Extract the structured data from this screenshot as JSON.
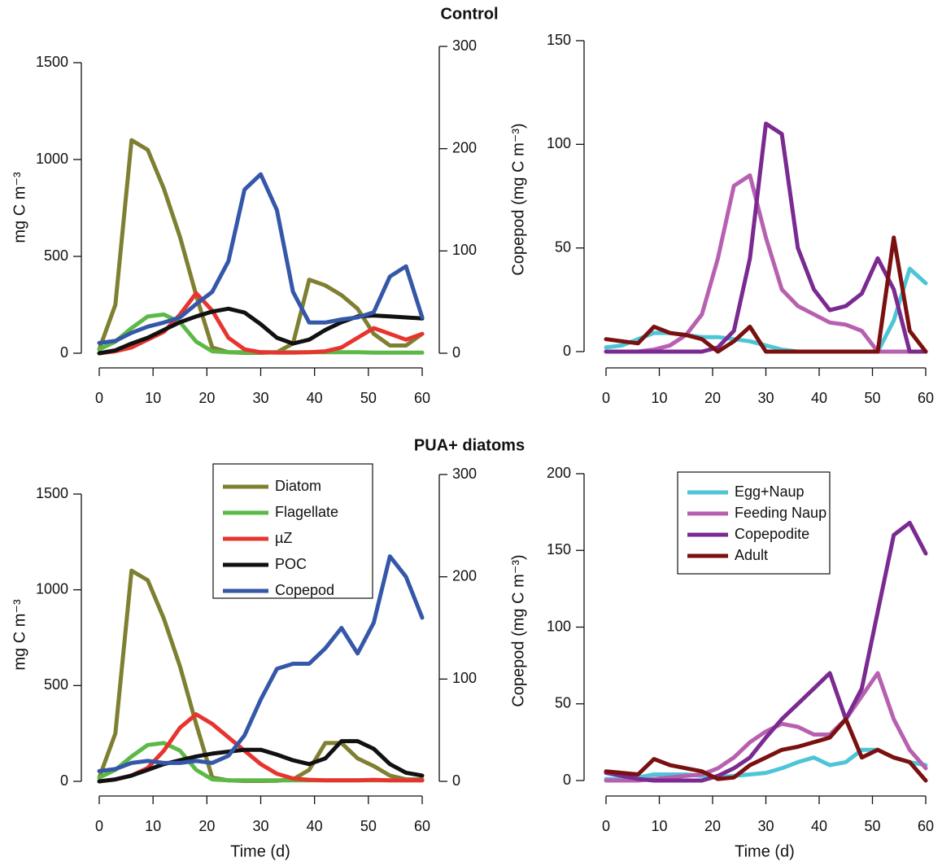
{
  "chart_data": [
    {
      "type": "line",
      "title": "Control",
      "x": [
        0,
        3,
        6,
        9,
        12,
        15,
        18,
        21,
        24,
        27,
        30,
        33,
        36,
        39,
        42,
        45,
        48,
        51,
        54,
        57,
        60
      ],
      "xlim": [
        0,
        60
      ],
      "xticks": [
        0,
        10,
        20,
        30,
        40,
        50,
        60
      ],
      "y_label": "mg C m⁻³",
      "ylim": [
        0,
        1500
      ],
      "yticks": [
        0,
        500,
        1000,
        1500
      ],
      "y2lim": [
        0,
        300
      ],
      "y2ticks": [
        0,
        100,
        200,
        300
      ],
      "series": [
        {
          "color": "#7f7f32",
          "values": [
            20,
            250,
            1100,
            1050,
            850,
            600,
            300,
            30,
            5,
            2,
            2,
            5,
            50,
            380,
            350,
            300,
            230,
            100,
            40,
            40,
            100
          ]
        },
        {
          "color": "#5cb946",
          "values": [
            20,
            60,
            130,
            190,
            200,
            160,
            60,
            10,
            5,
            5,
            5,
            5,
            5,
            5,
            5,
            5,
            5,
            3,
            3,
            3,
            3
          ]
        },
        {
          "color": "#e8342e",
          "values": [
            0,
            10,
            30,
            70,
            110,
            200,
            310,
            220,
            80,
            20,
            5,
            3,
            3,
            5,
            10,
            30,
            80,
            130,
            100,
            70,
            100
          ]
        },
        {
          "color": "#111111",
          "values": [
            0,
            15,
            50,
            80,
            120,
            160,
            190,
            215,
            230,
            210,
            150,
            80,
            50,
            70,
            120,
            160,
            190,
            195,
            190,
            185,
            180
          ]
        },
        {
          "color": "#3557a8",
          "axis": "y2",
          "values": [
            10,
            12,
            20,
            26,
            30,
            35,
            48,
            60,
            90,
            160,
            175,
            140,
            60,
            30,
            30,
            33,
            35,
            40,
            75,
            85,
            35
          ]
        }
      ]
    },
    {
      "type": "line",
      "x": [
        0,
        3,
        6,
        9,
        12,
        15,
        18,
        21,
        24,
        27,
        30,
        33,
        36,
        39,
        42,
        45,
        48,
        51,
        54,
        57,
        60
      ],
      "xlim": [
        0,
        60
      ],
      "xticks": [
        0,
        10,
        20,
        30,
        40,
        50,
        60
      ],
      "y_label": "Copepod (mg C m⁻³)",
      "ylim": [
        0,
        150
      ],
      "yticks": [
        0,
        50,
        100,
        150
      ],
      "series": [
        {
          "color": "#4ec5d6",
          "values": [
            2,
            3,
            6,
            9,
            9,
            8,
            7,
            7,
            6,
            5,
            3,
            1,
            0,
            0,
            0,
            0,
            0,
            0,
            15,
            40,
            33
          ]
        },
        {
          "color": "#b860b0",
          "values": [
            0,
            0,
            0,
            1,
            3,
            8,
            18,
            45,
            80,
            85,
            55,
            30,
            22,
            18,
            14,
            13,
            10,
            0,
            0,
            0,
            0
          ]
        },
        {
          "color": "#7a2a90",
          "values": [
            0,
            0,
            0,
            0,
            0,
            0,
            0,
            2,
            10,
            45,
            110,
            105,
            50,
            30,
            20,
            22,
            28,
            45,
            30,
            0,
            0
          ]
        },
        {
          "color": "#7a1010",
          "values": [
            6,
            5,
            4,
            12,
            9,
            8,
            6,
            0,
            5,
            12,
            0,
            0,
            0,
            0,
            0,
            0,
            0,
            0,
            55,
            10,
            0
          ]
        }
      ]
    },
    {
      "type": "line",
      "title": "PUA+ diatoms",
      "x": [
        0,
        3,
        6,
        9,
        12,
        15,
        18,
        21,
        24,
        27,
        30,
        33,
        36,
        39,
        42,
        45,
        48,
        51,
        54,
        57,
        60
      ],
      "xlim": [
        0,
        60
      ],
      "xticks": [
        0,
        10,
        20,
        30,
        40,
        50,
        60
      ],
      "x_label": "Time (d)",
      "y_label": "mg C m⁻³",
      "ylim": [
        0,
        1500
      ],
      "yticks": [
        0,
        500,
        1000,
        1500
      ],
      "y2lim": [
        0,
        300
      ],
      "y2ticks": [
        0,
        100,
        200,
        300
      ],
      "legend": true,
      "series": [
        {
          "name": "Diatom",
          "color": "#7f7f32",
          "values": [
            20,
            250,
            1100,
            1050,
            850,
            600,
            300,
            20,
            5,
            2,
            2,
            3,
            10,
            60,
            200,
            200,
            120,
            80,
            30,
            10,
            10
          ]
        },
        {
          "name": "Flagellate",
          "color": "#5cb946",
          "values": [
            20,
            60,
            130,
            190,
            200,
            160,
            60,
            10,
            5,
            5,
            5,
            5,
            5,
            5,
            5,
            5,
            5,
            5,
            5,
            5,
            5
          ]
        },
        {
          "name": "µZ",
          "color": "#e8342e",
          "values": [
            0,
            10,
            30,
            70,
            160,
            280,
            350,
            300,
            230,
            160,
            90,
            40,
            15,
            8,
            5,
            5,
            5,
            8,
            5,
            5,
            5
          ]
        },
        {
          "name": "POC",
          "color": "#111111",
          "values": [
            0,
            10,
            30,
            60,
            90,
            110,
            130,
            145,
            155,
            165,
            165,
            140,
            110,
            90,
            120,
            210,
            210,
            170,
            90,
            45,
            30
          ]
        },
        {
          "name": "Copepod",
          "color": "#3557a8",
          "axis": "y2",
          "values": [
            10,
            12,
            18,
            20,
            18,
            18,
            20,
            18,
            25,
            45,
            80,
            110,
            115,
            115,
            130,
            150,
            125,
            155,
            220,
            200,
            160
          ]
        }
      ]
    },
    {
      "type": "line",
      "x": [
        0,
        3,
        6,
        9,
        12,
        15,
        18,
        21,
        24,
        27,
        30,
        33,
        36,
        39,
        42,
        45,
        48,
        51,
        54,
        57,
        60
      ],
      "xlim": [
        0,
        60
      ],
      "xticks": [
        0,
        10,
        20,
        30,
        40,
        50,
        60
      ],
      "x_label": "Time (d)",
      "y_label": "Copepod (mg C m⁻³)",
      "ylim": [
        0,
        200
      ],
      "yticks": [
        0,
        50,
        100,
        150,
        200
      ],
      "legend": true,
      "series": [
        {
          "name": "Egg+Naup",
          "color": "#4ec5d6",
          "values": [
            1,
            1,
            2,
            4,
            4,
            4,
            3,
            2,
            3,
            4,
            5,
            8,
            12,
            15,
            10,
            12,
            20,
            20,
            15,
            12,
            10
          ]
        },
        {
          "name": "Feeding Naup",
          "color": "#b860b0",
          "values": [
            0,
            0,
            0,
            1,
            2,
            3,
            4,
            8,
            15,
            25,
            32,
            37,
            35,
            30,
            30,
            40,
            55,
            70,
            40,
            20,
            8
          ]
        },
        {
          "name": "Copepodite",
          "color": "#7a2a90",
          "values": [
            5,
            3,
            1,
            0,
            0,
            0,
            0,
            3,
            8,
            15,
            28,
            40,
            50,
            60,
            70,
            40,
            60,
            110,
            160,
            168,
            148
          ]
        },
        {
          "name": "Adult",
          "color": "#7a1010",
          "values": [
            6,
            5,
            4,
            14,
            10,
            8,
            6,
            1,
            2,
            10,
            15,
            20,
            22,
            25,
            28,
            40,
            15,
            20,
            15,
            12,
            0
          ]
        }
      ]
    }
  ]
}
